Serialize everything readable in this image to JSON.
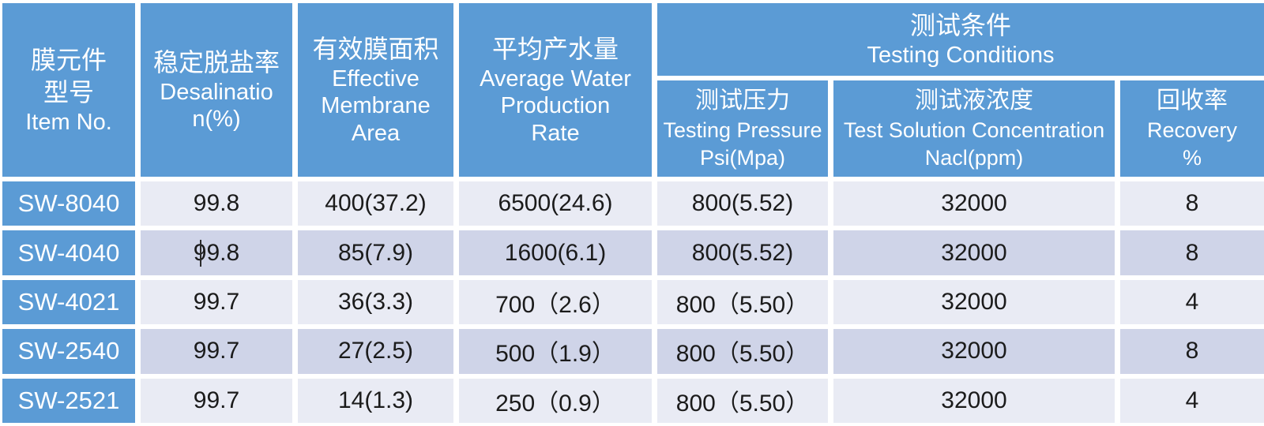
{
  "chart_data": {
    "type": "table",
    "header": {
      "item_no": {
        "lines": [
          "膜元件",
          "型号",
          "Item No."
        ]
      },
      "desalination": {
        "lines": [
          "稳定脱盐率",
          "Desalinatio",
          "n(%)"
        ]
      },
      "membrane_area": {
        "lines": [
          "有效膜面积",
          "Effective",
          "Membrane",
          "Area"
        ]
      },
      "water_production": {
        "lines": [
          "平均产水量",
          "Average Water",
          "Production",
          "Rate"
        ]
      },
      "testing_conditions": {
        "lines": [
          "测试条件",
          "Testing Conditions"
        ]
      },
      "testing_pressure": {
        "lines": [
          "测试压力",
          "Testing Pressure",
          "Psi(Mpa)"
        ]
      },
      "test_solution": {
        "lines": [
          "测试液浓度",
          "Test Solution Concentration",
          "Nacl(ppm)"
        ]
      },
      "recovery": {
        "lines": [
          "回收率",
          "Recovery",
          "%"
        ]
      }
    },
    "columns": [
      "item",
      "desalination",
      "area",
      "production",
      "pressure",
      "concentration",
      "recovery"
    ],
    "rows": [
      {
        "item": "SW-8040",
        "desalination": "99.8",
        "area": "400(37.2)",
        "production": "6500(24.6)",
        "pressure": "800(5.52)",
        "concentration": "32000",
        "recovery": "8"
      },
      {
        "item": "SW-4040",
        "desalination": "99.8",
        "area": "85(7.9)",
        "production": "1600(6.1)",
        "pressure": "800(5.52)",
        "concentration": "32000",
        "recovery": "8"
      },
      {
        "item": "SW-4021",
        "desalination": "99.7",
        "area": "36(3.3)",
        "production": "700（2.6）",
        "pressure": "800（5.50）",
        "concentration": "32000",
        "recovery": "4"
      },
      {
        "item": "SW-2540",
        "desalination": "99.7",
        "area": "27(2.5)",
        "production": "500（1.9）",
        "pressure": "800（5.50）",
        "concentration": "32000",
        "recovery": "8"
      },
      {
        "item": "SW-2521",
        "desalination": "99.7",
        "area": "14(1.3)",
        "production": "250（0.9）",
        "pressure": "800（5.50）",
        "concentration": "32000",
        "recovery": "4"
      }
    ]
  },
  "artifacts": {
    "text_cursor_location": "SW-4040 desalination cell, between first and second 9 of 99.8"
  },
  "colors": {
    "header_blue": "#5B9BD5",
    "row_light": "#E9EBF4",
    "row_dark": "#CFD4E8",
    "text_dark": "#1B1B1B",
    "white": "#FFFFFF",
    "background": "#FFFFFF"
  }
}
